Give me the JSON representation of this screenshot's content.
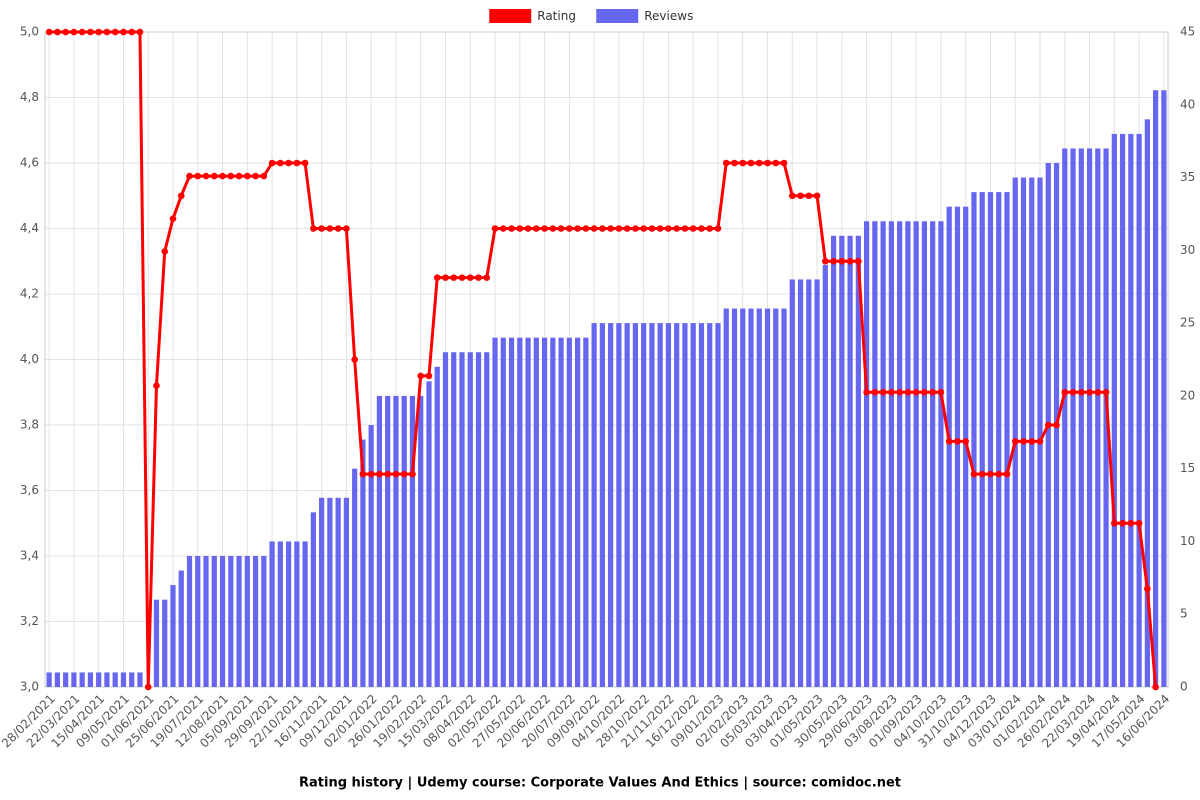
{
  "chart_data": {
    "type": "bar",
    "title": "Rating history | Udemy course: Corporate Values And Ethics | source: comidoc.net",
    "categories": [
      "28/02/2021",
      null,
      null,
      "22/03/2021",
      null,
      null,
      "15/04/2021",
      null,
      null,
      "09/05/2021",
      null,
      null,
      "01/06/2021",
      null,
      null,
      "25/06/2021",
      null,
      null,
      "19/07/2021",
      null,
      null,
      "12/08/2021",
      null,
      null,
      "05/09/2021",
      null,
      null,
      "29/09/2021",
      null,
      null,
      "22/10/2021",
      null,
      null,
      "16/11/2021",
      null,
      null,
      "09/12/2021",
      null,
      null,
      "02/01/2022",
      null,
      null,
      "26/01/2022",
      null,
      null,
      "19/02/2022",
      null,
      null,
      "15/03/2022",
      null,
      null,
      "08/04/2022",
      null,
      null,
      "02/05/2022",
      null,
      null,
      "27/05/2022",
      null,
      null,
      "20/06/2022",
      null,
      null,
      "20/07/2022",
      null,
      null,
      "09/09/2022",
      null,
      null,
      "04/10/2022",
      null,
      null,
      "28/10/2022",
      null,
      null,
      "21/11/2022",
      null,
      null,
      "16/12/2022",
      null,
      null,
      "09/01/2023",
      null,
      null,
      "02/02/2023",
      null,
      null,
      "05/03/2023",
      null,
      null,
      "03/04/2023",
      null,
      null,
      "01/05/2023",
      null,
      null,
      "30/05/2023",
      null,
      null,
      "29/06/2023",
      null,
      null,
      "03/08/2023",
      null,
      null,
      "01/09/2023",
      null,
      null,
      "04/10/2023",
      null,
      null,
      "31/10/2023",
      null,
      null,
      "04/12/2023",
      null,
      null,
      "03/01/2024",
      null,
      null,
      "01/02/2024",
      null,
      null,
      "26/02/2024",
      null,
      null,
      "22/03/2024",
      null,
      null,
      "19/04/2024",
      null,
      null,
      "17/05/2024",
      null,
      null,
      "16/06/2024"
    ],
    "series": [
      {
        "name": "Rating",
        "type": "line",
        "axis": "y",
        "color": "#ff0000",
        "values": [
          5,
          5,
          5,
          5,
          5,
          5,
          5,
          5,
          5,
          5,
          5,
          5,
          3.0,
          3.92,
          4.33,
          4.43,
          4.5,
          4.56,
          4.56,
          4.56,
          4.56,
          4.56,
          4.56,
          4.56,
          4.56,
          4.56,
          4.56,
          4.6,
          4.6,
          4.6,
          4.6,
          4.6,
          4.4,
          4.4,
          4.4,
          4.4,
          4.4,
          4.0,
          3.65,
          3.65,
          3.65,
          3.65,
          3.65,
          3.65,
          3.65,
          3.95,
          3.95,
          4.25,
          4.25,
          4.25,
          4.25,
          4.25,
          4.25,
          4.25,
          4.4,
          4.4,
          4.4,
          4.4,
          4.4,
          4.4,
          4.4,
          4.4,
          4.4,
          4.4,
          4.4,
          4.4,
          4.4,
          4.4,
          4.4,
          4.4,
          4.4,
          4.4,
          4.4,
          4.4,
          4.4,
          4.4,
          4.4,
          4.4,
          4.4,
          4.4,
          4.4,
          4.4,
          4.6,
          4.6,
          4.6,
          4.6,
          4.6,
          4.6,
          4.6,
          4.6,
          4.5,
          4.5,
          4.5,
          4.5,
          4.3,
          4.3,
          4.3,
          4.3,
          4.3,
          3.9,
          3.9,
          3.9,
          3.9,
          3.9,
          3.9,
          3.9,
          3.9,
          3.9,
          3.9,
          3.75,
          3.75,
          3.75,
          3.65,
          3.65,
          3.65,
          3.65,
          3.65,
          3.75,
          3.75,
          3.75,
          3.75,
          3.8,
          3.8,
          3.9,
          3.9,
          3.9,
          3.9,
          3.9,
          3.9,
          3.5,
          3.5,
          3.5,
          3.5,
          3.3,
          3.0,
          null
        ]
      },
      {
        "name": "Reviews",
        "type": "bar",
        "axis": "y2",
        "color": "#6666ee",
        "values": [
          1,
          1,
          1,
          1,
          1,
          1,
          1,
          1,
          1,
          1,
          1,
          1,
          0,
          6,
          6,
          7,
          8,
          9,
          9,
          9,
          9,
          9,
          9,
          9,
          9,
          9,
          9,
          10,
          10,
          10,
          10,
          10,
          12,
          13,
          13,
          13,
          13,
          15,
          17,
          18,
          20,
          20,
          20,
          20,
          20,
          20,
          21,
          22,
          23,
          23,
          23,
          23,
          23,
          23,
          24,
          24,
          24,
          24,
          24,
          24,
          24,
          24,
          24,
          24,
          24,
          24,
          25,
          25,
          25,
          25,
          25,
          25,
          25,
          25,
          25,
          25,
          25,
          25,
          25,
          25,
          25,
          25,
          26,
          26,
          26,
          26,
          26,
          26,
          26,
          26,
          28,
          28,
          28,
          28,
          29,
          31,
          31,
          31,
          31,
          32,
          32,
          32,
          32,
          32,
          32,
          32,
          32,
          32,
          32,
          33,
          33,
          33,
          34,
          34,
          34,
          34,
          34,
          35,
          35,
          35,
          35,
          36,
          36,
          37,
          37,
          37,
          37,
          37,
          37,
          38,
          38,
          38,
          38,
          39,
          41,
          41
        ]
      }
    ],
    "ylim": [
      3,
      5
    ],
    "yticks": [
      {
        "value": 3,
        "label": "3,0"
      },
      {
        "value": 3.2,
        "label": "3,2"
      },
      {
        "value": 3.4,
        "label": "3,4"
      },
      {
        "value": 3.6,
        "label": "3,6"
      },
      {
        "value": 3.8,
        "label": "3,8"
      },
      {
        "value": 4,
        "label": "4,0"
      },
      {
        "value": 4.2,
        "label": "4,2"
      },
      {
        "value": 4.4,
        "label": "4,4"
      },
      {
        "value": 4.6,
        "label": "4,6"
      },
      {
        "value": 4.8,
        "label": "4,8"
      },
      {
        "value": 5,
        "label": "5,0"
      }
    ],
    "y2lim": [
      0,
      45
    ],
    "y2ticks": [
      0,
      5,
      10,
      15,
      20,
      25,
      30,
      35,
      40,
      45
    ],
    "grid": true,
    "legend": "upper center"
  }
}
